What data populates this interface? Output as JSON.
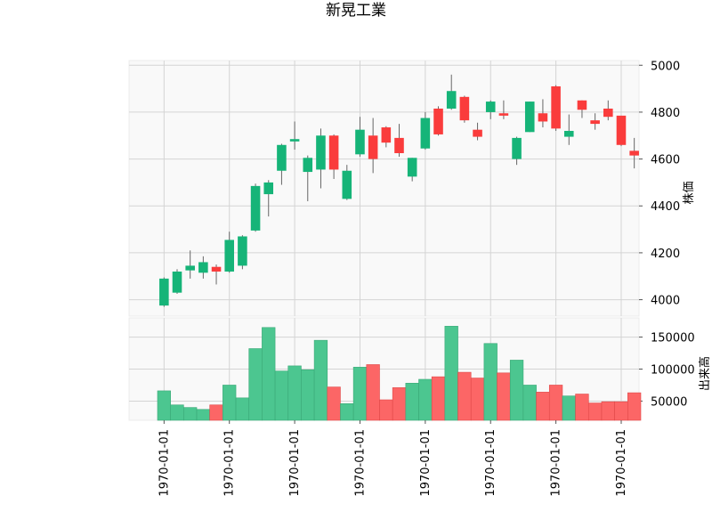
{
  "chart_data": {
    "type": "candlestick",
    "title": "新晃工業",
    "price_axis": {
      "label": "株価",
      "ticks": [
        4000,
        4200,
        4400,
        4600,
        4800,
        5000
      ],
      "ylim": [
        3930,
        5020
      ]
    },
    "volume_axis": {
      "label": "出来高",
      "ticks": [
        50000,
        100000,
        150000
      ],
      "tick_labels": [
        "50000",
        "100000",
        "150000"
      ],
      "ylim": [
        20000,
        180000
      ]
    },
    "x_tick_labels": [
      "1970-01-01",
      "1970-01-01",
      "1970-01-01",
      "1970-01-01",
      "1970-01-01",
      "1970-01-01",
      "1970-01-01",
      "1970-01-01"
    ],
    "x_tick_positions": [
      0.5,
      5.5,
      10.5,
      15.5,
      20.5,
      25.5,
      30.5,
      35.5
    ],
    "up_color": "#16b478",
    "down_color": "#fa3c3c",
    "grid": true,
    "candles": [
      {
        "open": 3975,
        "high": 4095,
        "low": 3970,
        "close": 4090
      },
      {
        "open": 4030,
        "high": 4130,
        "low": 4025,
        "close": 4120
      },
      {
        "open": 4125,
        "high": 4210,
        "low": 4090,
        "close": 4145
      },
      {
        "open": 4115,
        "high": 4185,
        "low": 4090,
        "close": 4160
      },
      {
        "open": 4140,
        "high": 4150,
        "low": 4065,
        "close": 4120
      },
      {
        "open": 4120,
        "high": 4290,
        "low": 4115,
        "close": 4255
      },
      {
        "open": 4145,
        "high": 4275,
        "low": 4130,
        "close": 4270
      },
      {
        "open": 4295,
        "high": 4495,
        "low": 4290,
        "close": 4485
      },
      {
        "open": 4450,
        "high": 4510,
        "low": 4355,
        "close": 4500
      },
      {
        "open": 4550,
        "high": 4665,
        "low": 4490,
        "close": 4660
      },
      {
        "open": 4675,
        "high": 4760,
        "low": 4640,
        "close": 4685
      },
      {
        "open": 4545,
        "high": 4615,
        "low": 4420,
        "close": 4605
      },
      {
        "open": 4555,
        "high": 4730,
        "low": 4475,
        "close": 4700
      },
      {
        "open": 4700,
        "high": 4705,
        "low": 4515,
        "close": 4555
      },
      {
        "open": 4430,
        "high": 4575,
        "low": 4425,
        "close": 4550
      },
      {
        "open": 4620,
        "high": 4780,
        "low": 4610,
        "close": 4725
      },
      {
        "open": 4700,
        "high": 4775,
        "low": 4540,
        "close": 4600
      },
      {
        "open": 4735,
        "high": 4740,
        "low": 4650,
        "close": 4670
      },
      {
        "open": 4690,
        "high": 4750,
        "low": 4610,
        "close": 4625
      },
      {
        "open": 4525,
        "high": 4605,
        "low": 4505,
        "close": 4605
      },
      {
        "open": 4645,
        "high": 4800,
        "low": 4640,
        "close": 4775
      },
      {
        "open": 4815,
        "high": 4825,
        "low": 4700,
        "close": 4705
      },
      {
        "open": 4815,
        "high": 4960,
        "low": 4810,
        "close": 4890
      },
      {
        "open": 4865,
        "high": 4870,
        "low": 4755,
        "close": 4765
      },
      {
        "open": 4725,
        "high": 4755,
        "low": 4680,
        "close": 4695
      },
      {
        "open": 4800,
        "high": 4850,
        "low": 4770,
        "close": 4845
      },
      {
        "open": 4795,
        "high": 4850,
        "low": 4770,
        "close": 4785
      },
      {
        "open": 4600,
        "high": 4695,
        "low": 4575,
        "close": 4690
      },
      {
        "open": 4715,
        "high": 4845,
        "low": 4715,
        "close": 4845
      },
      {
        "open": 4795,
        "high": 4855,
        "low": 4735,
        "close": 4760
      },
      {
        "open": 4910,
        "high": 4915,
        "low": 4720,
        "close": 4730
      },
      {
        "open": 4695,
        "high": 4790,
        "low": 4660,
        "close": 4720
      },
      {
        "open": 4850,
        "high": 4850,
        "low": 4775,
        "close": 4810
      },
      {
        "open": 4765,
        "high": 4795,
        "low": 4725,
        "close": 4750
      },
      {
        "open": 4815,
        "high": 4850,
        "low": 4765,
        "close": 4780
      },
      {
        "open": 4785,
        "high": 4785,
        "low": 4655,
        "close": 4660
      },
      {
        "open": 4635,
        "high": 4690,
        "low": 4560,
        "close": 4615
      }
    ],
    "volumes": [
      66000,
      44000,
      40000,
      37000,
      44000,
      75000,
      55000,
      132000,
      165000,
      97000,
      105000,
      99000,
      145000,
      72000,
      46000,
      103000,
      107000,
      52000,
      71000,
      78000,
      84000,
      88000,
      167000,
      95000,
      86000,
      140000,
      94000,
      114000,
      75000,
      64000,
      75000,
      58000,
      61000,
      47000,
      49000,
      49000,
      63000
    ]
  }
}
